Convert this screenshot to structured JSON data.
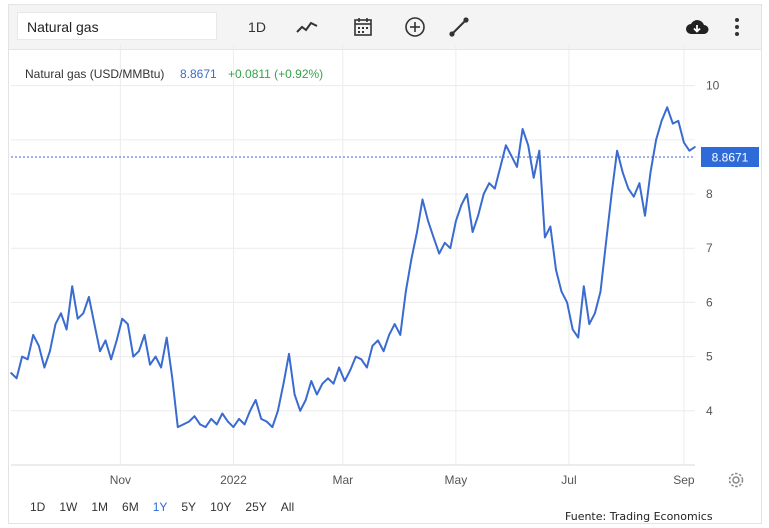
{
  "toolbar": {
    "symbol": "Natural gas",
    "interval": "1D",
    "icons": [
      "line-chart-icon",
      "calendar-icon",
      "add-compare-icon",
      "draw-line-icon",
      "download-icon",
      "more-vertical-icon"
    ]
  },
  "colors": {
    "line": "#3a6bd0",
    "price_tag": "#2f6bd8",
    "change": "#36a24a",
    "grid": "#ececec"
  },
  "ranges": [
    "1D",
    "1W",
    "1M",
    "6M",
    "1Y",
    "5Y",
    "10Y",
    "25Y",
    "All"
  ],
  "active_range": "1Y",
  "source": "Fuente: Trading Economics",
  "chart_data": {
    "type": "line",
    "title": "Natural gas (USD/MMBtu)",
    "last_value": "8.8671",
    "change": "+0.0811 (+0.92%)",
    "price_tag": "8.8671",
    "x_tick_labels": [
      "Nov",
      "2022",
      "Mar",
      "May",
      "Jul",
      "Sep"
    ],
    "x_ticks": [
      "2021-11-01",
      "2022-01-01",
      "2022-03-01",
      "2022-05-01",
      "2022-07-01",
      "2022-09-01"
    ],
    "x_range": [
      "2021-09-03",
      "2022-09-07"
    ],
    "y_ticks": [
      4,
      5,
      6,
      7,
      8,
      9,
      10
    ],
    "y_tick_labels": [
      "4",
      "5",
      "6",
      "7",
      "8",
      "",
      "10"
    ],
    "ylim": [
      3.0,
      10.75
    ],
    "grid": true,
    "series": [
      {
        "x": [
          "2021-09-03",
          "2021-09-06",
          "2021-09-09",
          "2021-09-12",
          "2021-09-15",
          "2021-09-18",
          "2021-09-21",
          "2021-09-24",
          "2021-09-27",
          "2021-09-30",
          "2021-10-03",
          "2021-10-06",
          "2021-10-09",
          "2021-10-12",
          "2021-10-15",
          "2021-10-18",
          "2021-10-21",
          "2021-10-24",
          "2021-10-27",
          "2021-10-30",
          "2021-11-02",
          "2021-11-05",
          "2021-11-08",
          "2021-11-11",
          "2021-11-14",
          "2021-11-17",
          "2021-11-20",
          "2021-11-23",
          "2021-11-26",
          "2021-11-29",
          "2021-12-02",
          "2021-12-05",
          "2021-12-08",
          "2021-12-11",
          "2021-12-14",
          "2021-12-17",
          "2021-12-20",
          "2021-12-23",
          "2021-12-26",
          "2021-12-29",
          "2022-01-01",
          "2022-01-04",
          "2022-01-07",
          "2022-01-10",
          "2022-01-13",
          "2022-01-16",
          "2022-01-19",
          "2022-01-22",
          "2022-01-25",
          "2022-01-28",
          "2022-01-31",
          "2022-02-03",
          "2022-02-06",
          "2022-02-09",
          "2022-02-12",
          "2022-02-15",
          "2022-02-18",
          "2022-02-21",
          "2022-02-24",
          "2022-02-27",
          "2022-03-02",
          "2022-03-05",
          "2022-03-08",
          "2022-03-11",
          "2022-03-14",
          "2022-03-17",
          "2022-03-20",
          "2022-03-23",
          "2022-03-26",
          "2022-03-29",
          "2022-04-01",
          "2022-04-04",
          "2022-04-07",
          "2022-04-10",
          "2022-04-13",
          "2022-04-16",
          "2022-04-19",
          "2022-04-22",
          "2022-04-25",
          "2022-04-28",
          "2022-05-01",
          "2022-05-04",
          "2022-05-07",
          "2022-05-10",
          "2022-05-13",
          "2022-05-16",
          "2022-05-19",
          "2022-05-22",
          "2022-05-25",
          "2022-05-28",
          "2022-05-31",
          "2022-06-03",
          "2022-06-06",
          "2022-06-09",
          "2022-06-12",
          "2022-06-15",
          "2022-06-18",
          "2022-06-21",
          "2022-06-24",
          "2022-06-27",
          "2022-06-30",
          "2022-07-03",
          "2022-07-06",
          "2022-07-09",
          "2022-07-12",
          "2022-07-15",
          "2022-07-18",
          "2022-07-21",
          "2022-07-24",
          "2022-07-27",
          "2022-07-30",
          "2022-08-02",
          "2022-08-05",
          "2022-08-08",
          "2022-08-11",
          "2022-08-14",
          "2022-08-17",
          "2022-08-20",
          "2022-08-23",
          "2022-08-26",
          "2022-08-29",
          "2022-09-01",
          "2022-09-04",
          "2022-09-07"
        ],
        "values": [
          4.7,
          4.6,
          5.0,
          4.95,
          5.4,
          5.2,
          4.8,
          5.1,
          5.6,
          5.8,
          5.5,
          6.3,
          5.7,
          5.8,
          6.1,
          5.6,
          5.1,
          5.3,
          4.95,
          5.3,
          5.7,
          5.6,
          5.0,
          5.1,
          5.4,
          4.85,
          5.0,
          4.8,
          5.35,
          4.6,
          3.7,
          3.75,
          3.8,
          3.9,
          3.75,
          3.7,
          3.85,
          3.75,
          3.95,
          3.8,
          3.7,
          3.85,
          3.75,
          4.0,
          4.2,
          3.85,
          3.8,
          3.7,
          4.0,
          4.5,
          5.05,
          4.3,
          4.0,
          4.2,
          4.55,
          4.3,
          4.5,
          4.6,
          4.5,
          4.8,
          4.55,
          4.75,
          5.0,
          4.95,
          4.8,
          5.2,
          5.3,
          5.1,
          5.4,
          5.6,
          5.4,
          6.2,
          6.8,
          7.3,
          7.9,
          7.5,
          7.2,
          6.9,
          7.1,
          7.0,
          7.5,
          7.8,
          8.0,
          7.3,
          7.6,
          8.0,
          8.2,
          8.1,
          8.5,
          8.9,
          8.7,
          8.5,
          9.2,
          8.9,
          8.3,
          8.8,
          7.2,
          7.4,
          6.6,
          6.2,
          6.0,
          5.5,
          5.35,
          6.3,
          5.6,
          5.8,
          6.2,
          7.1,
          8.0,
          8.8,
          8.4,
          8.1,
          7.95,
          8.2,
          7.6,
          8.4,
          9.0,
          9.35,
          9.6,
          9.3,
          9.35,
          8.95,
          8.8,
          8.87
        ]
      }
    ]
  }
}
